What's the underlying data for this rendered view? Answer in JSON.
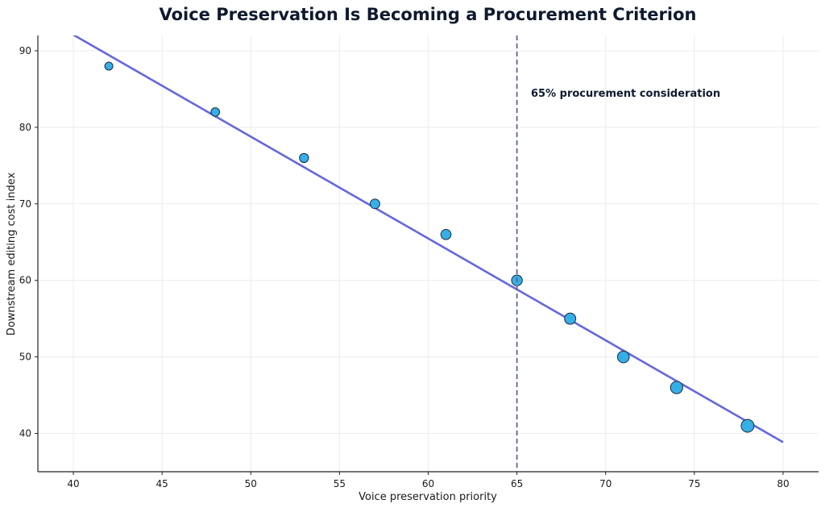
{
  "chart_data": {
    "type": "scatter",
    "title": "Voice Preservation Is Becoming a Procurement Criterion",
    "xlabel": "Voice preservation priority",
    "ylabel": "Downstream editing cost index",
    "xlim": [
      38,
      82
    ],
    "ylim": [
      35,
      92
    ],
    "xticks": [
      40,
      45,
      50,
      55,
      60,
      65,
      70,
      75,
      80
    ],
    "yticks": [
      40,
      50,
      60,
      70,
      80,
      90
    ],
    "grid": true,
    "points": [
      {
        "x": 42,
        "y": 88
      },
      {
        "x": 48,
        "y": 82
      },
      {
        "x": 53,
        "y": 76
      },
      {
        "x": 57,
        "y": 70
      },
      {
        "x": 61,
        "y": 66
      },
      {
        "x": 65,
        "y": 60
      },
      {
        "x": 68,
        "y": 55
      },
      {
        "x": 71,
        "y": 50
      },
      {
        "x": 74,
        "y": 46
      },
      {
        "x": 78,
        "y": 41
      }
    ],
    "trend_line": {
      "x": [
        38,
        80
      ],
      "y": [
        94.75,
        38.86
      ]
    },
    "reference_line": {
      "x": 65,
      "label": "65% procurement consideration"
    },
    "colors": {
      "point_fill": "#36aee6",
      "point_edge": "#1a2b3c",
      "trend": "#6468dc",
      "reference": "#5a6a86",
      "title": "#0f1a2e",
      "annotation": "#0f1a2e",
      "grid": "#ececec"
    }
  }
}
